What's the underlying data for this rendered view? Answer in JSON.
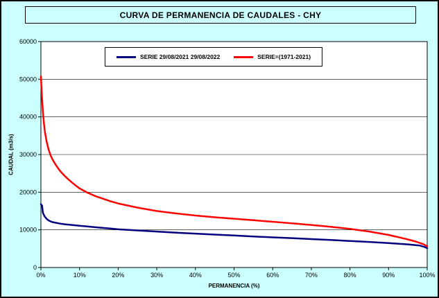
{
  "title": "CURVA DE PERMANENCIA DE CAUDALES - CHY",
  "legend": {
    "items": [
      {
        "label": "SERIE 29/08/2021 29/08/2022",
        "color": "#000080"
      },
      {
        "label": "SERIE=(1971-2021)",
        "color": "#FF0000"
      }
    ]
  },
  "colors": {
    "background": "#CCFFFF",
    "plot_background": "#FFFFFF",
    "grid": "#000000",
    "series_blue": "#000080",
    "series_red": "#FF0000"
  },
  "chart_data": {
    "type": "line",
    "title": "CURVA DE PERMANENCIA DE CAUDALES - CHY",
    "xlabel": "PERMANENCIA (%)",
    "ylabel": "CAUDAL (m3/s)",
    "xlim": [
      0,
      100
    ],
    "ylim": [
      0,
      60000
    ],
    "x_ticks": [
      0,
      10,
      20,
      30,
      40,
      50,
      60,
      70,
      80,
      90,
      100
    ],
    "x_tick_labels": [
      "0%",
      "10%",
      "20%",
      "30%",
      "40%",
      "50%",
      "60%",
      "70%",
      "80%",
      "90%",
      "100%"
    ],
    "y_ticks": [
      0,
      10000,
      20000,
      30000,
      40000,
      50000,
      60000
    ],
    "grid": "horizontal",
    "legend_position": "top-center-inside",
    "series": [
      {
        "name": "SERIE 29/08/2021 29/08/2022",
        "color": "#000080",
        "points": [
          [
            0,
            16800
          ],
          [
            0.3,
            16400
          ],
          [
            0.5,
            14600
          ],
          [
            0.8,
            13900
          ],
          [
            1,
            13500
          ],
          [
            1.5,
            12900
          ],
          [
            2,
            12500
          ],
          [
            2.5,
            12250
          ],
          [
            3,
            12050
          ],
          [
            4,
            11850
          ],
          [
            5,
            11650
          ],
          [
            6,
            11500
          ],
          [
            8,
            11300
          ],
          [
            10,
            11100
          ],
          [
            12,
            10900
          ],
          [
            15,
            10600
          ],
          [
            18,
            10350
          ],
          [
            20,
            10150
          ],
          [
            25,
            9850
          ],
          [
            30,
            9550
          ],
          [
            35,
            9250
          ],
          [
            40,
            9000
          ],
          [
            45,
            8750
          ],
          [
            50,
            8500
          ],
          [
            55,
            8250
          ],
          [
            60,
            8000
          ],
          [
            65,
            7800
          ],
          [
            70,
            7550
          ],
          [
            75,
            7300
          ],
          [
            80,
            7050
          ],
          [
            85,
            6800
          ],
          [
            90,
            6500
          ],
          [
            95,
            6150
          ],
          [
            98,
            5850
          ],
          [
            99.5,
            5400
          ],
          [
            100,
            5100
          ]
        ]
      },
      {
        "name": "SERIE=(1971-2021)",
        "color": "#FF0000",
        "points": [
          [
            0,
            50800
          ],
          [
            0.2,
            46500
          ],
          [
            0.5,
            41500
          ],
          [
            0.8,
            38000
          ],
          [
            1,
            36200
          ],
          [
            1.5,
            33300
          ],
          [
            2,
            31300
          ],
          [
            2.5,
            29800
          ],
          [
            3,
            28700
          ],
          [
            4,
            27000
          ],
          [
            5,
            25600
          ],
          [
            6,
            24500
          ],
          [
            7,
            23500
          ],
          [
            8,
            22600
          ],
          [
            9,
            21800
          ],
          [
            10,
            21000
          ],
          [
            12,
            19900
          ],
          [
            14,
            19000
          ],
          [
            16,
            18300
          ],
          [
            18,
            17600
          ],
          [
            20,
            17000
          ],
          [
            25,
            15900
          ],
          [
            30,
            15000
          ],
          [
            35,
            14350
          ],
          [
            40,
            13800
          ],
          [
            45,
            13350
          ],
          [
            50,
            12950
          ],
          [
            55,
            12550
          ],
          [
            60,
            12150
          ],
          [
            65,
            11750
          ],
          [
            70,
            11300
          ],
          [
            75,
            10800
          ],
          [
            80,
            10250
          ],
          [
            85,
            9550
          ],
          [
            90,
            8650
          ],
          [
            93,
            7950
          ],
          [
            95,
            7450
          ],
          [
            97,
            6900
          ],
          [
            99,
            6200
          ],
          [
            100,
            5650
          ]
        ]
      }
    ]
  }
}
